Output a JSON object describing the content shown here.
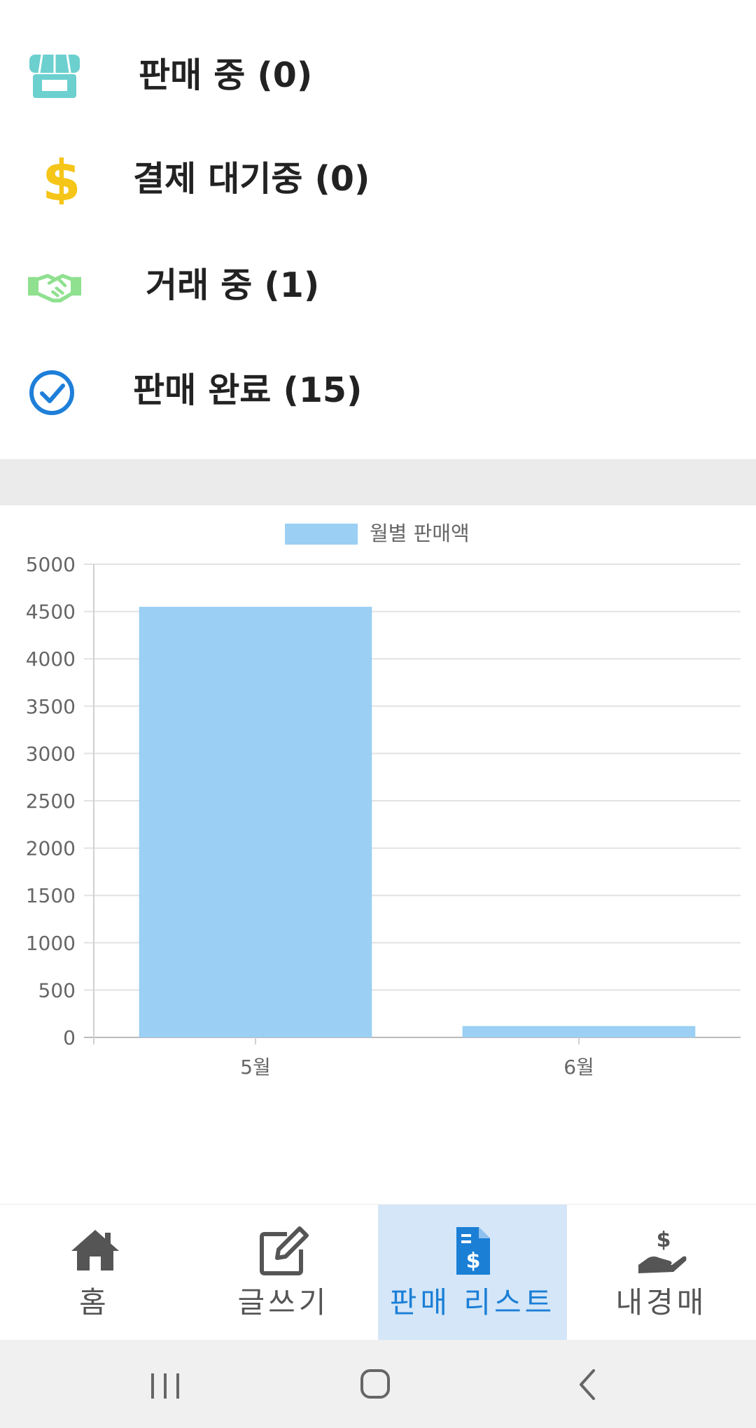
{
  "status_list": [
    {
      "label": "판매 중 (0)",
      "icon": "store-icon",
      "color": "#6cd0cf"
    },
    {
      "label": "결제 대기중 (0)",
      "icon": "dollar-icon",
      "color": "#f5c518"
    },
    {
      "label": "거래 중 (1)",
      "icon": "handshake-icon",
      "color": "#8fe08f"
    },
    {
      "label": "판매 완료 (15)",
      "icon": "check-circle-icon",
      "color": "#1e7fd9"
    }
  ],
  "chart_data": {
    "type": "bar",
    "legend": "월별 판매액",
    "categories": [
      "5월",
      "6월"
    ],
    "series": [
      {
        "name": "월별 판매액",
        "values": [
          4550,
          120
        ]
      }
    ],
    "ylim": [
      0,
      5000
    ],
    "yticks": [
      0,
      500,
      1000,
      1500,
      2000,
      2500,
      3000,
      3500,
      4000,
      4500,
      5000
    ],
    "bar_color": "#9bcff4",
    "grid": true,
    "legend_position": "top"
  },
  "bottom_nav": [
    {
      "label": "홈",
      "icon": "home-icon",
      "active": false
    },
    {
      "label": "글쓰기",
      "icon": "edit-icon",
      "active": false
    },
    {
      "label": "판매 리스트",
      "icon": "invoice-dollar-icon",
      "active": true
    },
    {
      "label": "내경매",
      "icon": "hand-dollar-icon",
      "active": false
    }
  ],
  "colors": {
    "accent": "#1b7fd6",
    "active_tab_bg": "#d4e6f8",
    "divider_band": "#ebebeb"
  }
}
